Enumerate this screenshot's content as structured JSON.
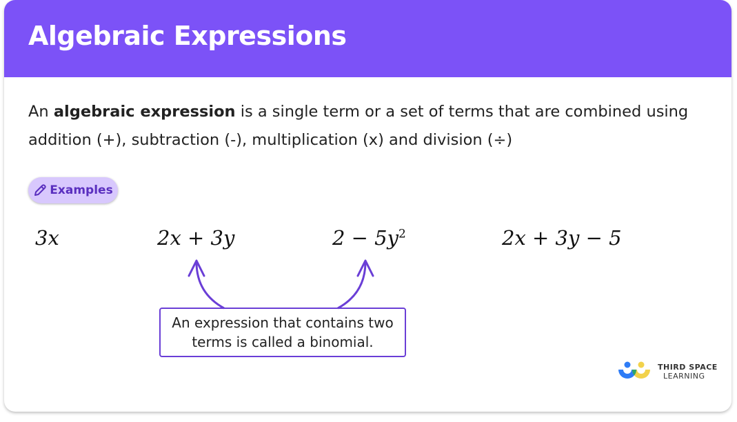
{
  "header": {
    "title": "Algebraic Expressions",
    "color": "#7c52f7"
  },
  "intro": {
    "before": "An ",
    "bold": "algebraic expression",
    "after": " is a single term or a set of terms that are combined using addition (+), subtraction (-), multiplication (x) and division (÷)"
  },
  "examples_pill": {
    "label": "Examples",
    "icon": "pencil-icon"
  },
  "expressions": [
    "3x",
    "2x + 3y",
    "2 − 5y",
    "2x + 3y − 5"
  ],
  "expression_superscript": "2",
  "callout": {
    "text": "An expression that contains two terms is called a binomial."
  },
  "logo": {
    "line1": "THIRD SPACE",
    "line2": "LEARNING"
  }
}
